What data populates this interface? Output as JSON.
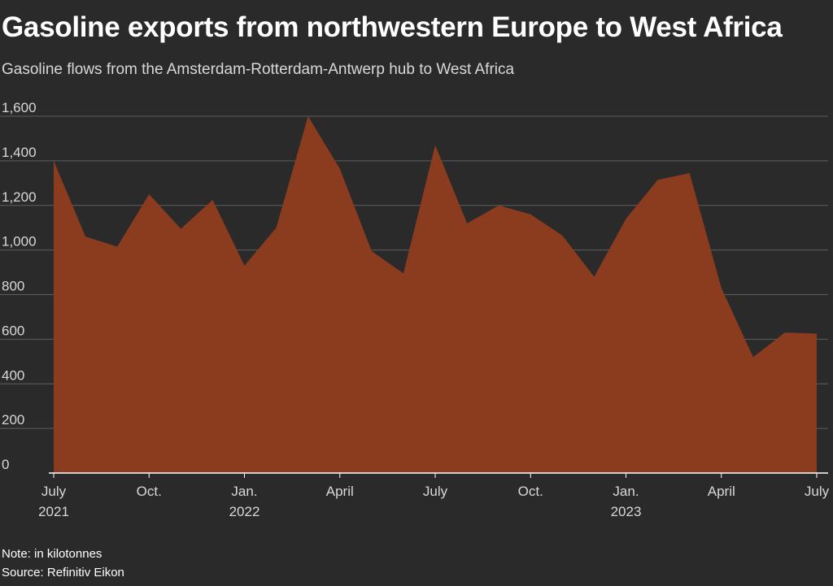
{
  "title": "Gasoline exports from northwestern Europe to West Africa",
  "subtitle": "Gasoline flows from the Amsterdam-Rotterdam-Antwerp hub to West Africa",
  "note": "Note: in kilotonnes",
  "source": "Source: Refinitiv Eikon",
  "colors": {
    "background": "#2a2a2a",
    "area_fill": "#8b3c1e",
    "gridline": "#5e5e5e",
    "axis_line": "#ffffff",
    "text": "#d8d8d8"
  },
  "chart_data": {
    "type": "area",
    "title": "Gasoline exports from northwestern Europe to West Africa",
    "subtitle": "Gasoline flows from the Amsterdam-Rotterdam-Antwerp hub to West Africa",
    "xlabel": "",
    "ylabel": "",
    "unit": "kilotonnes",
    "ylim": [
      0,
      1600
    ],
    "yticks": [
      0,
      200,
      400,
      600,
      800,
      1000,
      1200,
      1400,
      1600
    ],
    "ytick_labels": [
      "0",
      "200",
      "400",
      "600",
      "800",
      "1,000",
      "1,200",
      "1,400",
      "1,600"
    ],
    "grid": true,
    "x": [
      "2021-07",
      "2021-08",
      "2021-09",
      "2021-10",
      "2021-11",
      "2021-12",
      "2022-01",
      "2022-02",
      "2022-03",
      "2022-04",
      "2022-05",
      "2022-06",
      "2022-07",
      "2022-08",
      "2022-09",
      "2022-10",
      "2022-11",
      "2022-12",
      "2023-01",
      "2023-02",
      "2023-03",
      "2023-04",
      "2023-05",
      "2023-06",
      "2023-07"
    ],
    "series": [
      {
        "values": [
          1400,
          1060,
          1015,
          1250,
          1095,
          1225,
          930,
          1100,
          1600,
          1365,
          995,
          895,
          1470,
          1120,
          1200,
          1160,
          1065,
          880,
          1140,
          1315,
          1345,
          830,
          520,
          630,
          625
        ]
      }
    ],
    "xticks": [
      {
        "x": "2021-07",
        "label": "July",
        "sublabel": "2021"
      },
      {
        "x": "2021-10",
        "label": "Oct.",
        "sublabel": ""
      },
      {
        "x": "2022-01",
        "label": "Jan.",
        "sublabel": "2022"
      },
      {
        "x": "2022-04",
        "label": "April",
        "sublabel": ""
      },
      {
        "x": "2022-07",
        "label": "July",
        "sublabel": ""
      },
      {
        "x": "2022-10",
        "label": "Oct.",
        "sublabel": ""
      },
      {
        "x": "2023-01",
        "label": "Jan.",
        "sublabel": "2023"
      },
      {
        "x": "2023-04",
        "label": "April",
        "sublabel": ""
      },
      {
        "x": "2023-07",
        "label": "July",
        "sublabel": ""
      }
    ]
  }
}
